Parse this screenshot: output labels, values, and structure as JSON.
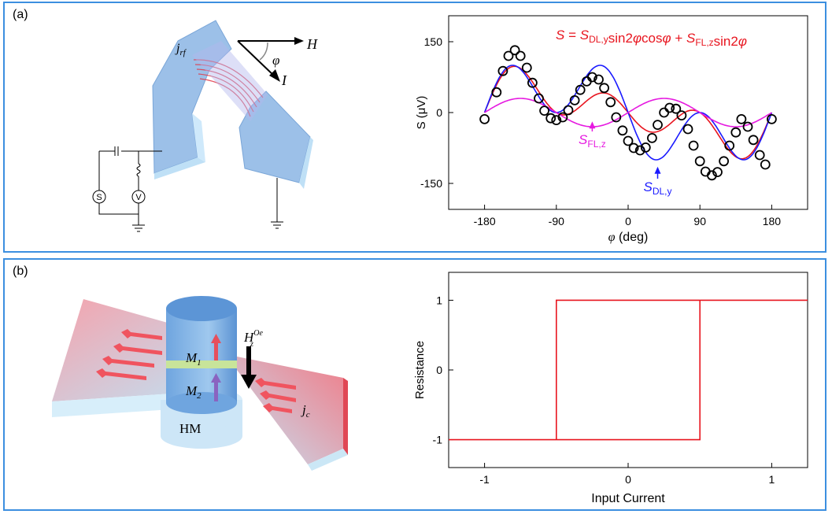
{
  "panels": {
    "a": {
      "label": "(a)",
      "device_labels": {
        "j": "j",
        "j_sub": "rf",
        "phi": "φ",
        "H": "H",
        "I": "I",
        "source": "S",
        "voltmeter": "V"
      }
    },
    "b": {
      "label": "(b)",
      "device_labels": {
        "M1": "M",
        "M1_sub": "1",
        "M2": "M",
        "M2_sub": "2",
        "Hz": "H",
        "Hz_sup": "Oe",
        "Hz_sub": "z",
        "HM": "HM",
        "jc": "j",
        "jc_sub": "c"
      }
    }
  },
  "colors": {
    "frame": "#3c8fe0",
    "red": "#e8141e",
    "blue": "#1a1aff",
    "magenta": "#e619e0",
    "black": "#000000",
    "electrode": "#9cc0e8"
  },
  "chart_data": [
    {
      "type": "line",
      "title": "",
      "equation": {
        "S": "S",
        "eq": " = ",
        "S1": "S",
        "S1_sub": "DL,y",
        "t1": "sin2",
        "phi1": "φ",
        "t2": "cos",
        "phi2": "φ",
        "plus": " + ",
        "S2": "S",
        "S2_sub": "FL,z",
        "t3": "sin2",
        "phi3": "φ"
      },
      "xlabel": {
        "symbol": "φ",
        "unit": " (deg)"
      },
      "ylabel": "S (μV)",
      "xlim": [
        -225,
        225
      ],
      "ylim": [
        -205,
        205
      ],
      "xticks": [
        -180,
        -90,
        0,
        90,
        180
      ],
      "xtick_labels": [
        "-180",
        "-90",
        "0",
        "90",
        "180"
      ],
      "yticks": [
        -150,
        0,
        150
      ],
      "ytick_labels": [
        "-150",
        "0",
        "150"
      ],
      "grid": false,
      "series": [
        {
          "key": "measured",
          "style": "open-circle",
          "color": "#000000",
          "x": [
            -180,
            -165,
            -157,
            -150,
            -142,
            -135,
            -127,
            -120,
            -112,
            -105,
            -97,
            -90,
            -82,
            -75,
            -67,
            -60,
            -52,
            -45,
            -37,
            -30,
            -22,
            -15,
            -7,
            0,
            7,
            15,
            22,
            30,
            37,
            45,
            52,
            60,
            67,
            75,
            82,
            90,
            97,
            105,
            112,
            120,
            127,
            135,
            142,
            150,
            157,
            165,
            172,
            180
          ],
          "y": [
            -14,
            43,
            88,
            120,
            132,
            120,
            95,
            63,
            30,
            4,
            -12,
            -16,
            -10,
            5,
            26,
            48,
            66,
            75,
            70,
            52,
            22,
            -10,
            -38,
            -60,
            -75,
            -80,
            -74,
            -54,
            -26,
            0,
            10,
            8,
            -6,
            -35,
            -70,
            -103,
            -125,
            -133,
            -126,
            -103,
            -70,
            -42,
            -14,
            -30,
            -58,
            -90,
            -110,
            -14
          ]
        },
        {
          "key": "fit",
          "name": "",
          "color": "#e8141e",
          "fn": {
            "a": -90,
            "b": 30
          }
        },
        {
          "key": "S_DL_y",
          "name": "S",
          "name_sub": "DL,y",
          "color": "#1a1aff",
          "fn": {
            "a": -130,
            "b": 0
          }
        },
        {
          "key": "S_FL_z",
          "name": "S",
          "name_sub": "FL,z",
          "color": "#e619e0",
          "fn": {
            "a": 0,
            "b": 30
          }
        }
      ],
      "annotations": {
        "S_FL_z": {
          "text": "S",
          "sub": "FL,z",
          "color": "#e619e0",
          "x": -45,
          "y_arrow_from": -40,
          "y_arrow_to": -22
        },
        "S_DL_y": {
          "text": "S",
          "sub": "DL,y",
          "color": "#1a1aff",
          "x": 37,
          "y_arrow_from": -140,
          "y_arrow_to": -118
        }
      }
    },
    {
      "type": "line",
      "title": "",
      "xlabel": "Input Current",
      "ylabel": "Resistance",
      "xlim": [
        -1.25,
        1.25
      ],
      "ylim": [
        -1.4,
        1.4
      ],
      "xticks": [
        -1,
        0,
        1
      ],
      "xtick_labels": [
        "-1",
        "0",
        "1"
      ],
      "yticks": [
        -1,
        0,
        1
      ],
      "ytick_labels": [
        "-1",
        "0",
        "1"
      ],
      "grid": false,
      "series": [
        {
          "name": "",
          "color": "#e8141e",
          "x": [
            -1.25,
            -0.5,
            -0.5,
            1.25,
            1.25,
            0.5,
            0.5,
            -1.25
          ],
          "y": [
            -1,
            -1,
            1,
            1,
            1,
            1,
            -1,
            -1
          ]
        }
      ]
    }
  ]
}
